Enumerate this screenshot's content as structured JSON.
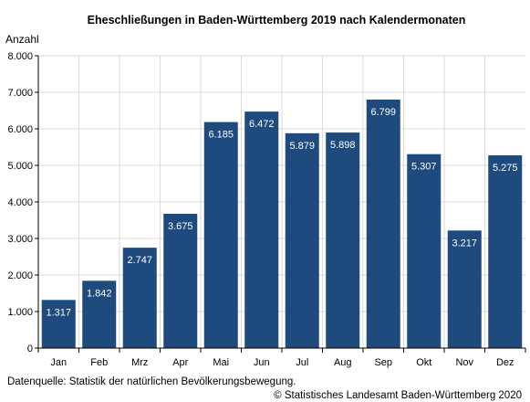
{
  "chart_data": {
    "type": "bar",
    "title": "Eheschließungen in Baden-Württemberg 2019 nach Kalendermonaten",
    "ylabel": "Anzahl",
    "xlabel": "",
    "categories": [
      "Jan",
      "Feb",
      "Mrz",
      "Apr",
      "Mai",
      "Jun",
      "Jul",
      "Aug",
      "Sep",
      "Okt",
      "Nov",
      "Dez"
    ],
    "values": [
      1317,
      1842,
      2747,
      3675,
      6185,
      6472,
      5879,
      5898,
      6799,
      5307,
      3217,
      5275
    ],
    "value_labels": [
      "1.317",
      "1.842",
      "2.747",
      "3.675",
      "6.185",
      "6.472",
      "5.879",
      "5.898",
      "6.799",
      "5.307",
      "3.217",
      "5.275"
    ],
    "yticks": [
      0,
      1000,
      2000,
      3000,
      4000,
      5000,
      6000,
      7000,
      8000
    ],
    "ytick_labels": [
      "0",
      "1.000",
      "2.000",
      "3.000",
      "4.000",
      "5.000",
      "6.000",
      "7.000",
      "8.000"
    ],
    "ylim": [
      0,
      8000
    ],
    "grid": true,
    "bar_color": "#1f4a7e",
    "grid_color": "#d9d9d9"
  },
  "footer": {
    "source": "Datenquelle: Statistik der natürlichen Bevölkerungsbewegung.",
    "copyright": "© Statistisches Landesamt Baden-Württemberg 2020"
  }
}
